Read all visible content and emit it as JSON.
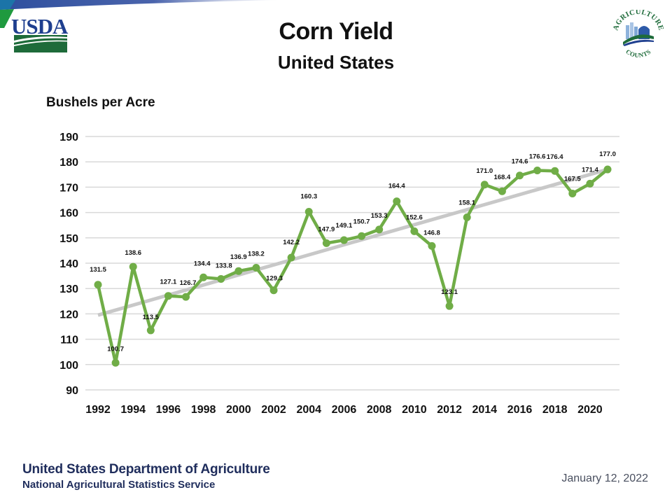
{
  "header": {
    "title": "Corn Yield",
    "subtitle": "United States",
    "left_logo": "usda-logo",
    "left_logo_text": "USDA",
    "right_logo": "agriculture-counts-logo",
    "right_logo_text_top": "AGRICULTURE",
    "right_logo_text_bottom": "COUNTS"
  },
  "footer": {
    "organization": "United States Department of Agriculture",
    "agency": "National Agricultural Statistics Service",
    "date": "January 12, 2022"
  },
  "colors": {
    "series_line": "#70ad47",
    "trend_line": "#c8c8c8",
    "gridline": "#d9d9d9",
    "footer_text": "#1f2d5c",
    "usda_blue": "#1f3f8f",
    "usda_green": "#1e6b3a"
  },
  "chart_data": {
    "type": "line",
    "title": "Corn Yield",
    "subtitle": "United States",
    "xlabel": "",
    "ylabel": "Bushels per Acre",
    "ylim": [
      90,
      190
    ],
    "yticks": [
      90,
      100,
      110,
      120,
      130,
      140,
      150,
      160,
      170,
      180,
      190
    ],
    "xlim": [
      1992,
      2021
    ],
    "xticks": [
      1992,
      1994,
      1996,
      1998,
      2000,
      2002,
      2004,
      2006,
      2008,
      2010,
      2012,
      2014,
      2016,
      2018,
      2020
    ],
    "grid": true,
    "legend": "none",
    "x": [
      1992,
      1993,
      1994,
      1995,
      1996,
      1997,
      1998,
      1999,
      2000,
      2001,
      2002,
      2003,
      2004,
      2005,
      2006,
      2007,
      2008,
      2009,
      2010,
      2011,
      2012,
      2013,
      2014,
      2015,
      2016,
      2017,
      2018,
      2019,
      2020,
      2021
    ],
    "series": [
      {
        "name": "Corn Yield",
        "values": [
          131.5,
          100.7,
          138.6,
          113.5,
          127.1,
          126.7,
          134.4,
          133.8,
          136.9,
          138.2,
          129.3,
          142.2,
          160.3,
          147.9,
          149.1,
          150.7,
          153.3,
          164.4,
          152.6,
          146.8,
          123.1,
          158.1,
          171.0,
          168.4,
          174.6,
          176.6,
          176.4,
          167.5,
          171.4,
          177.0
        ],
        "labels": [
          "131.5",
          "100.7",
          "138.6",
          "113.5",
          "127.1",
          "126.7",
          "134.4",
          "133.8",
          "136.9",
          "138.2",
          "129.3",
          "142.2",
          "160.3",
          "147.9",
          "149.1",
          "150.7",
          "153.3",
          "164.4",
          "152.6",
          "146.8",
          "123.1",
          "158.1",
          "171.0",
          "168.4",
          "174.6",
          "176.6",
          "176.4",
          "167.5",
          "171.4",
          "177.0"
        ]
      },
      {
        "name": "Linear trend",
        "type": "trendline",
        "x": [
          1992,
          2021
        ],
        "values": [
          119.5,
          177.0
        ]
      }
    ]
  }
}
